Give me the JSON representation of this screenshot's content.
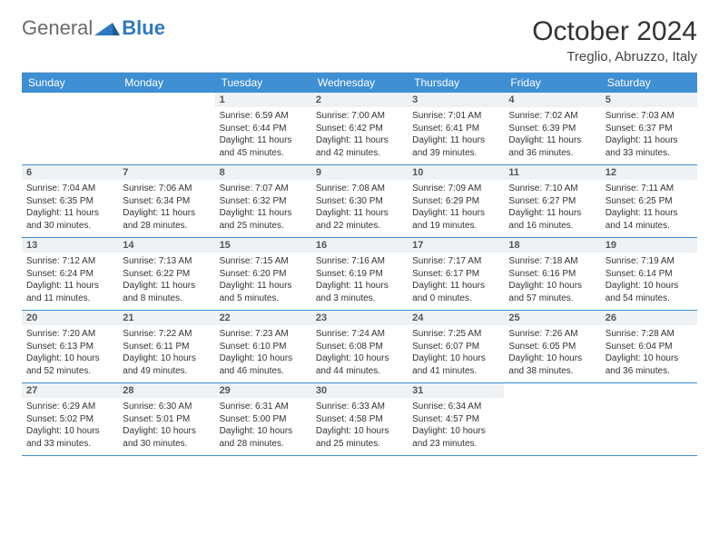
{
  "brand": {
    "word1": "General",
    "word2": "Blue"
  },
  "title": "October 2024",
  "location": "Treglio, Abruzzo, Italy",
  "colors": {
    "header_bg": "#3e8fd3",
    "datebar_bg": "#eef2f5",
    "row_divider": "#3e8fd3",
    "text": "#333333",
    "logo_gray": "#6b6b6b",
    "logo_blue": "#2e7ac0"
  },
  "dow": [
    "Sunday",
    "Monday",
    "Tuesday",
    "Wednesday",
    "Thursday",
    "Friday",
    "Saturday"
  ],
  "leading_blanks": 2,
  "days": [
    {
      "n": 1,
      "sr": "6:59 AM",
      "ss": "6:44 PM",
      "dl": "11 hours and 45 minutes."
    },
    {
      "n": 2,
      "sr": "7:00 AM",
      "ss": "6:42 PM",
      "dl": "11 hours and 42 minutes."
    },
    {
      "n": 3,
      "sr": "7:01 AM",
      "ss": "6:41 PM",
      "dl": "11 hours and 39 minutes."
    },
    {
      "n": 4,
      "sr": "7:02 AM",
      "ss": "6:39 PM",
      "dl": "11 hours and 36 minutes."
    },
    {
      "n": 5,
      "sr": "7:03 AM",
      "ss": "6:37 PM",
      "dl": "11 hours and 33 minutes."
    },
    {
      "n": 6,
      "sr": "7:04 AM",
      "ss": "6:35 PM",
      "dl": "11 hours and 30 minutes."
    },
    {
      "n": 7,
      "sr": "7:06 AM",
      "ss": "6:34 PM",
      "dl": "11 hours and 28 minutes."
    },
    {
      "n": 8,
      "sr": "7:07 AM",
      "ss": "6:32 PM",
      "dl": "11 hours and 25 minutes."
    },
    {
      "n": 9,
      "sr": "7:08 AM",
      "ss": "6:30 PM",
      "dl": "11 hours and 22 minutes."
    },
    {
      "n": 10,
      "sr": "7:09 AM",
      "ss": "6:29 PM",
      "dl": "11 hours and 19 minutes."
    },
    {
      "n": 11,
      "sr": "7:10 AM",
      "ss": "6:27 PM",
      "dl": "11 hours and 16 minutes."
    },
    {
      "n": 12,
      "sr": "7:11 AM",
      "ss": "6:25 PM",
      "dl": "11 hours and 14 minutes."
    },
    {
      "n": 13,
      "sr": "7:12 AM",
      "ss": "6:24 PM",
      "dl": "11 hours and 11 minutes."
    },
    {
      "n": 14,
      "sr": "7:13 AM",
      "ss": "6:22 PM",
      "dl": "11 hours and 8 minutes."
    },
    {
      "n": 15,
      "sr": "7:15 AM",
      "ss": "6:20 PM",
      "dl": "11 hours and 5 minutes."
    },
    {
      "n": 16,
      "sr": "7:16 AM",
      "ss": "6:19 PM",
      "dl": "11 hours and 3 minutes."
    },
    {
      "n": 17,
      "sr": "7:17 AM",
      "ss": "6:17 PM",
      "dl": "11 hours and 0 minutes."
    },
    {
      "n": 18,
      "sr": "7:18 AM",
      "ss": "6:16 PM",
      "dl": "10 hours and 57 minutes."
    },
    {
      "n": 19,
      "sr": "7:19 AM",
      "ss": "6:14 PM",
      "dl": "10 hours and 54 minutes."
    },
    {
      "n": 20,
      "sr": "7:20 AM",
      "ss": "6:13 PM",
      "dl": "10 hours and 52 minutes."
    },
    {
      "n": 21,
      "sr": "7:22 AM",
      "ss": "6:11 PM",
      "dl": "10 hours and 49 minutes."
    },
    {
      "n": 22,
      "sr": "7:23 AM",
      "ss": "6:10 PM",
      "dl": "10 hours and 46 minutes."
    },
    {
      "n": 23,
      "sr": "7:24 AM",
      "ss": "6:08 PM",
      "dl": "10 hours and 44 minutes."
    },
    {
      "n": 24,
      "sr": "7:25 AM",
      "ss": "6:07 PM",
      "dl": "10 hours and 41 minutes."
    },
    {
      "n": 25,
      "sr": "7:26 AM",
      "ss": "6:05 PM",
      "dl": "10 hours and 38 minutes."
    },
    {
      "n": 26,
      "sr": "7:28 AM",
      "ss": "6:04 PM",
      "dl": "10 hours and 36 minutes."
    },
    {
      "n": 27,
      "sr": "6:29 AM",
      "ss": "5:02 PM",
      "dl": "10 hours and 33 minutes."
    },
    {
      "n": 28,
      "sr": "6:30 AM",
      "ss": "5:01 PM",
      "dl": "10 hours and 30 minutes."
    },
    {
      "n": 29,
      "sr": "6:31 AM",
      "ss": "5:00 PM",
      "dl": "10 hours and 28 minutes."
    },
    {
      "n": 30,
      "sr": "6:33 AM",
      "ss": "4:58 PM",
      "dl": "10 hours and 25 minutes."
    },
    {
      "n": 31,
      "sr": "6:34 AM",
      "ss": "4:57 PM",
      "dl": "10 hours and 23 minutes."
    }
  ],
  "labels": {
    "sunrise": "Sunrise: ",
    "sunset": "Sunset: ",
    "daylight": "Daylight: "
  }
}
